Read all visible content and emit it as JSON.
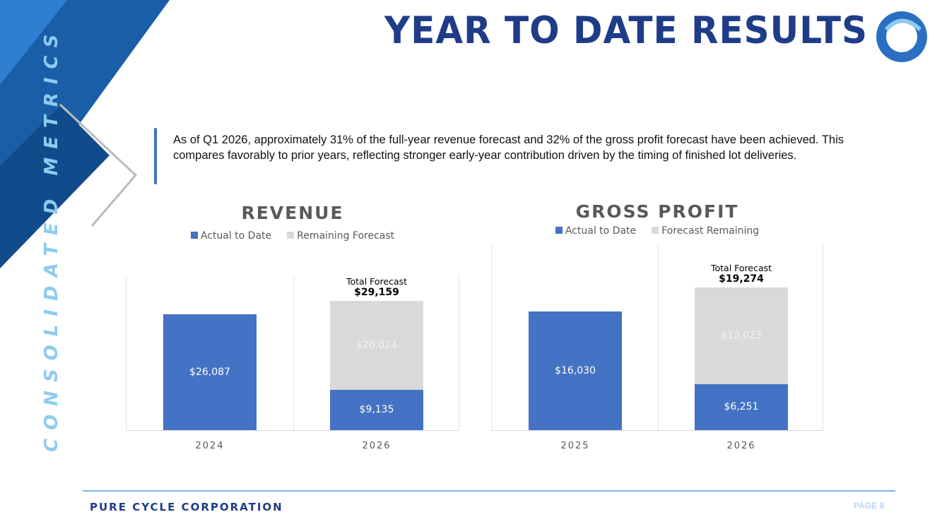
{
  "header": {
    "title": "YEAR TO DATE RESULTS",
    "side_label": "CONSOLIDATED METRICS"
  },
  "summary": "As of Q1 2026, approximately 31% of the full-year revenue forecast and 32% of the gross profit forecast have been achieved. This compares favorably to prior years, reflecting stronger early-year contribution driven by the timing of finished lot deliveries.",
  "footer": {
    "company": "PURE CYCLE CORPORATION",
    "page": "PAGE 8"
  },
  "colors": {
    "actual": "#4472c4",
    "remaining": "#d9d9d9",
    "brand": "#1f3c88"
  },
  "chart_data": [
    {
      "type": "bar",
      "stacked": true,
      "title": "REVENUE",
      "legend": [
        "Actual to Date",
        "Remaining Forecast"
      ],
      "legend_position": "top",
      "categories": [
        "2024",
        "2026"
      ],
      "series": [
        {
          "name": "Actual to Date",
          "values": [
            26087,
            9135
          ],
          "labels": [
            "$26,087",
            "$9,135"
          ]
        },
        {
          "name": "Remaining Forecast",
          "values": [
            0,
            20024
          ],
          "labels": [
            "",
            "$20,024"
          ]
        }
      ],
      "annotation": {
        "category": "2026",
        "label": "Total Forecast",
        "value": "$29,159"
      },
      "ylim": [
        0,
        35000
      ]
    },
    {
      "type": "bar",
      "stacked": true,
      "title": "GROSS PROFIT",
      "legend": [
        "Actual to Date",
        "Forecast Remaining"
      ],
      "legend_position": "top",
      "categories": [
        "2025",
        "2026"
      ],
      "series": [
        {
          "name": "Actual to Date",
          "values": [
            16030,
            6251
          ],
          "labels": [
            "$16,030",
            "$6,251"
          ]
        },
        {
          "name": "Forecast Remaining",
          "values": [
            0,
            13023
          ],
          "labels": [
            "",
            "$13,023"
          ]
        }
      ],
      "annotation": {
        "category": "2026",
        "label": "Total Forecast",
        "value": "$19,274"
      },
      "ylim": [
        0,
        25300
      ]
    }
  ]
}
